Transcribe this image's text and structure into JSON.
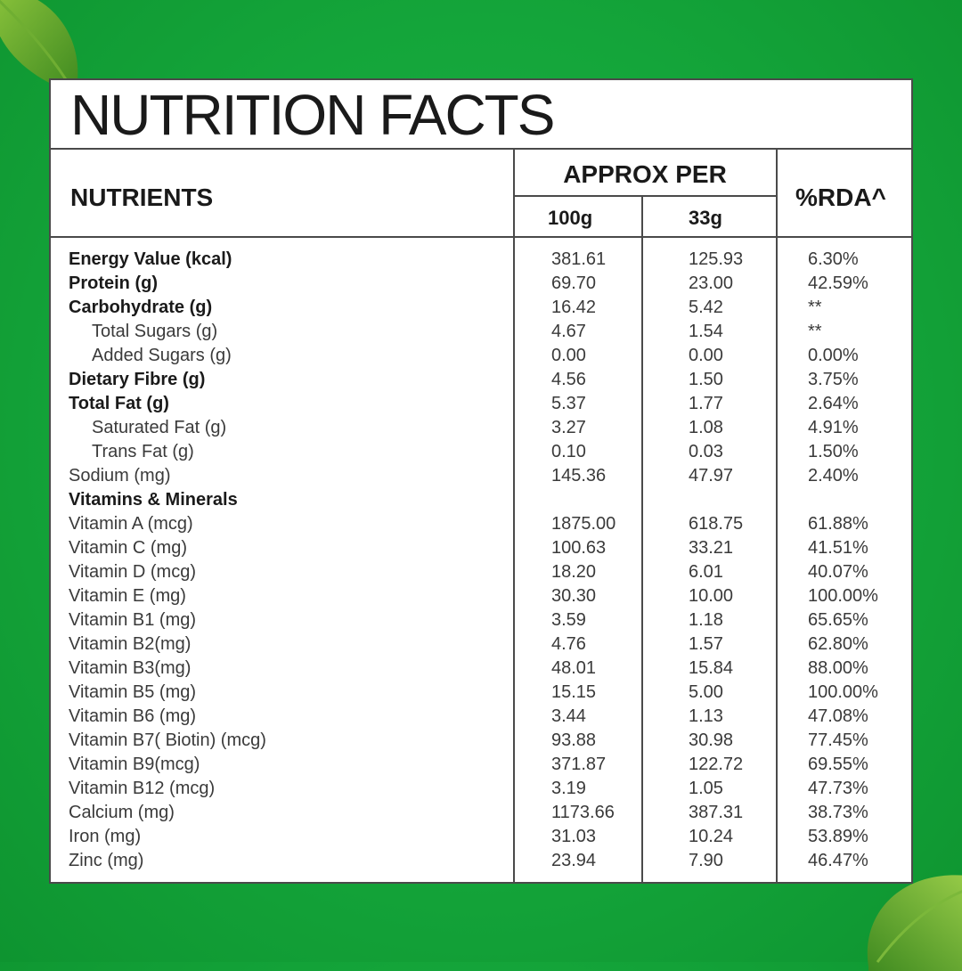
{
  "title": "NUTRITION FACTS",
  "headers": {
    "nutrients": "NUTRIENTS",
    "approx_per": "APPROX PER",
    "per_100g": "100g",
    "per_33g": "33g",
    "rda": "%RDA^"
  },
  "rows": [
    {
      "name": "Energy Value (kcal)",
      "v100": "381.61",
      "v33": "125.93",
      "rda": "6.30%",
      "style": "bold"
    },
    {
      "name": "Protein (g)",
      "v100": "69.70",
      "v33": "23.00",
      "rda": "42.59%",
      "style": "bold"
    },
    {
      "name": "Carbohydrate (g)",
      "v100": "16.42",
      "v33": "5.42",
      "rda": "**",
      "style": "bold"
    },
    {
      "name": "Total Sugars (g)",
      "v100": "4.67",
      "v33": "1.54",
      "rda": "**",
      "style": "indent"
    },
    {
      "name": "Added Sugars (g)",
      "v100": "0.00",
      "v33": "0.00",
      "rda": "0.00%",
      "style": "indent"
    },
    {
      "name": "Dietary Fibre (g)",
      "v100": "4.56",
      "v33": "1.50",
      "rda": "3.75%",
      "style": "bold"
    },
    {
      "name": "Total Fat (g)",
      "v100": "5.37",
      "v33": "1.77",
      "rda": "2.64%",
      "style": "bold"
    },
    {
      "name": "Saturated Fat (g)",
      "v100": "3.27",
      "v33": "1.08",
      "rda": "4.91%",
      "style": "indent"
    },
    {
      "name": "Trans Fat (g)",
      "v100": "0.10",
      "v33": "0.03",
      "rda": "1.50%",
      "style": "indent"
    },
    {
      "name": "Sodium (mg)",
      "v100": "145.36",
      "v33": "47.97",
      "rda": "2.40%",
      "style": "normal"
    },
    {
      "name": "Vitamins & Minerals",
      "v100": "",
      "v33": "",
      "rda": "",
      "style": "bold"
    },
    {
      "name": "Vitamin A (mcg)",
      "v100": "1875.00",
      "v33": "618.75",
      "rda": "61.88%",
      "style": "normal"
    },
    {
      "name": "Vitamin C (mg)",
      "v100": "100.63",
      "v33": "33.21",
      "rda": "41.51%",
      "style": "normal"
    },
    {
      "name": "Vitamin D (mcg)",
      "v100": "18.20",
      "v33": "6.01",
      "rda": "40.07%",
      "style": "normal"
    },
    {
      "name": "Vitamin E (mg)",
      "v100": "30.30",
      "v33": "10.00",
      "rda": "100.00%",
      "style": "normal"
    },
    {
      "name": "Vitamin B1 (mg)",
      "v100": "3.59",
      "v33": "1.18",
      "rda": "65.65%",
      "style": "normal"
    },
    {
      "name": "Vitamin B2(mg)",
      "v100": "4.76",
      "v33": "1.57",
      "rda": "62.80%",
      "style": "normal"
    },
    {
      "name": "Vitamin B3(mg)",
      "v100": "48.01",
      "v33": "15.84",
      "rda": "88.00%",
      "style": "normal"
    },
    {
      "name": "Vitamin B5 (mg)",
      "v100": "15.15",
      "v33": "5.00",
      "rda": "100.00%",
      "style": "normal"
    },
    {
      "name": "Vitamin B6 (mg)",
      "v100": "3.44",
      "v33": "1.13",
      "rda": "47.08%",
      "style": "normal"
    },
    {
      "name": "Vitamin B7( Biotin) (mcg)",
      "v100": "93.88",
      "v33": "30.98",
      "rda": "77.45%",
      "style": "normal"
    },
    {
      "name": "Vitamin B9(mcg)",
      "v100": "371.87",
      "v33": "122.72",
      "rda": "69.55%",
      "style": "normal"
    },
    {
      "name": "Vitamin B12 (mcg)",
      "v100": "3.19",
      "v33": "1.05",
      "rda": "47.73%",
      "style": "normal"
    },
    {
      "name": "Calcium (mg)",
      "v100": "1173.66",
      "v33": "387.31",
      "rda": "38.73%",
      "style": "normal"
    },
    {
      "name": "Iron (mg)",
      "v100": "31.03",
      "v33": "10.24",
      "rda": "53.89%",
      "style": "normal"
    },
    {
      "name": "Zinc (mg)",
      "v100": "23.94",
      "v33": "7.90",
      "rda": "46.47%",
      "style": "normal"
    }
  ],
  "colors": {
    "background": "#14a53a",
    "leaf": "#4f9a2a",
    "panel": "#ffffff",
    "border": "#4a4a4a"
  },
  "icons": [
    "basil-leaf-icon"
  ]
}
